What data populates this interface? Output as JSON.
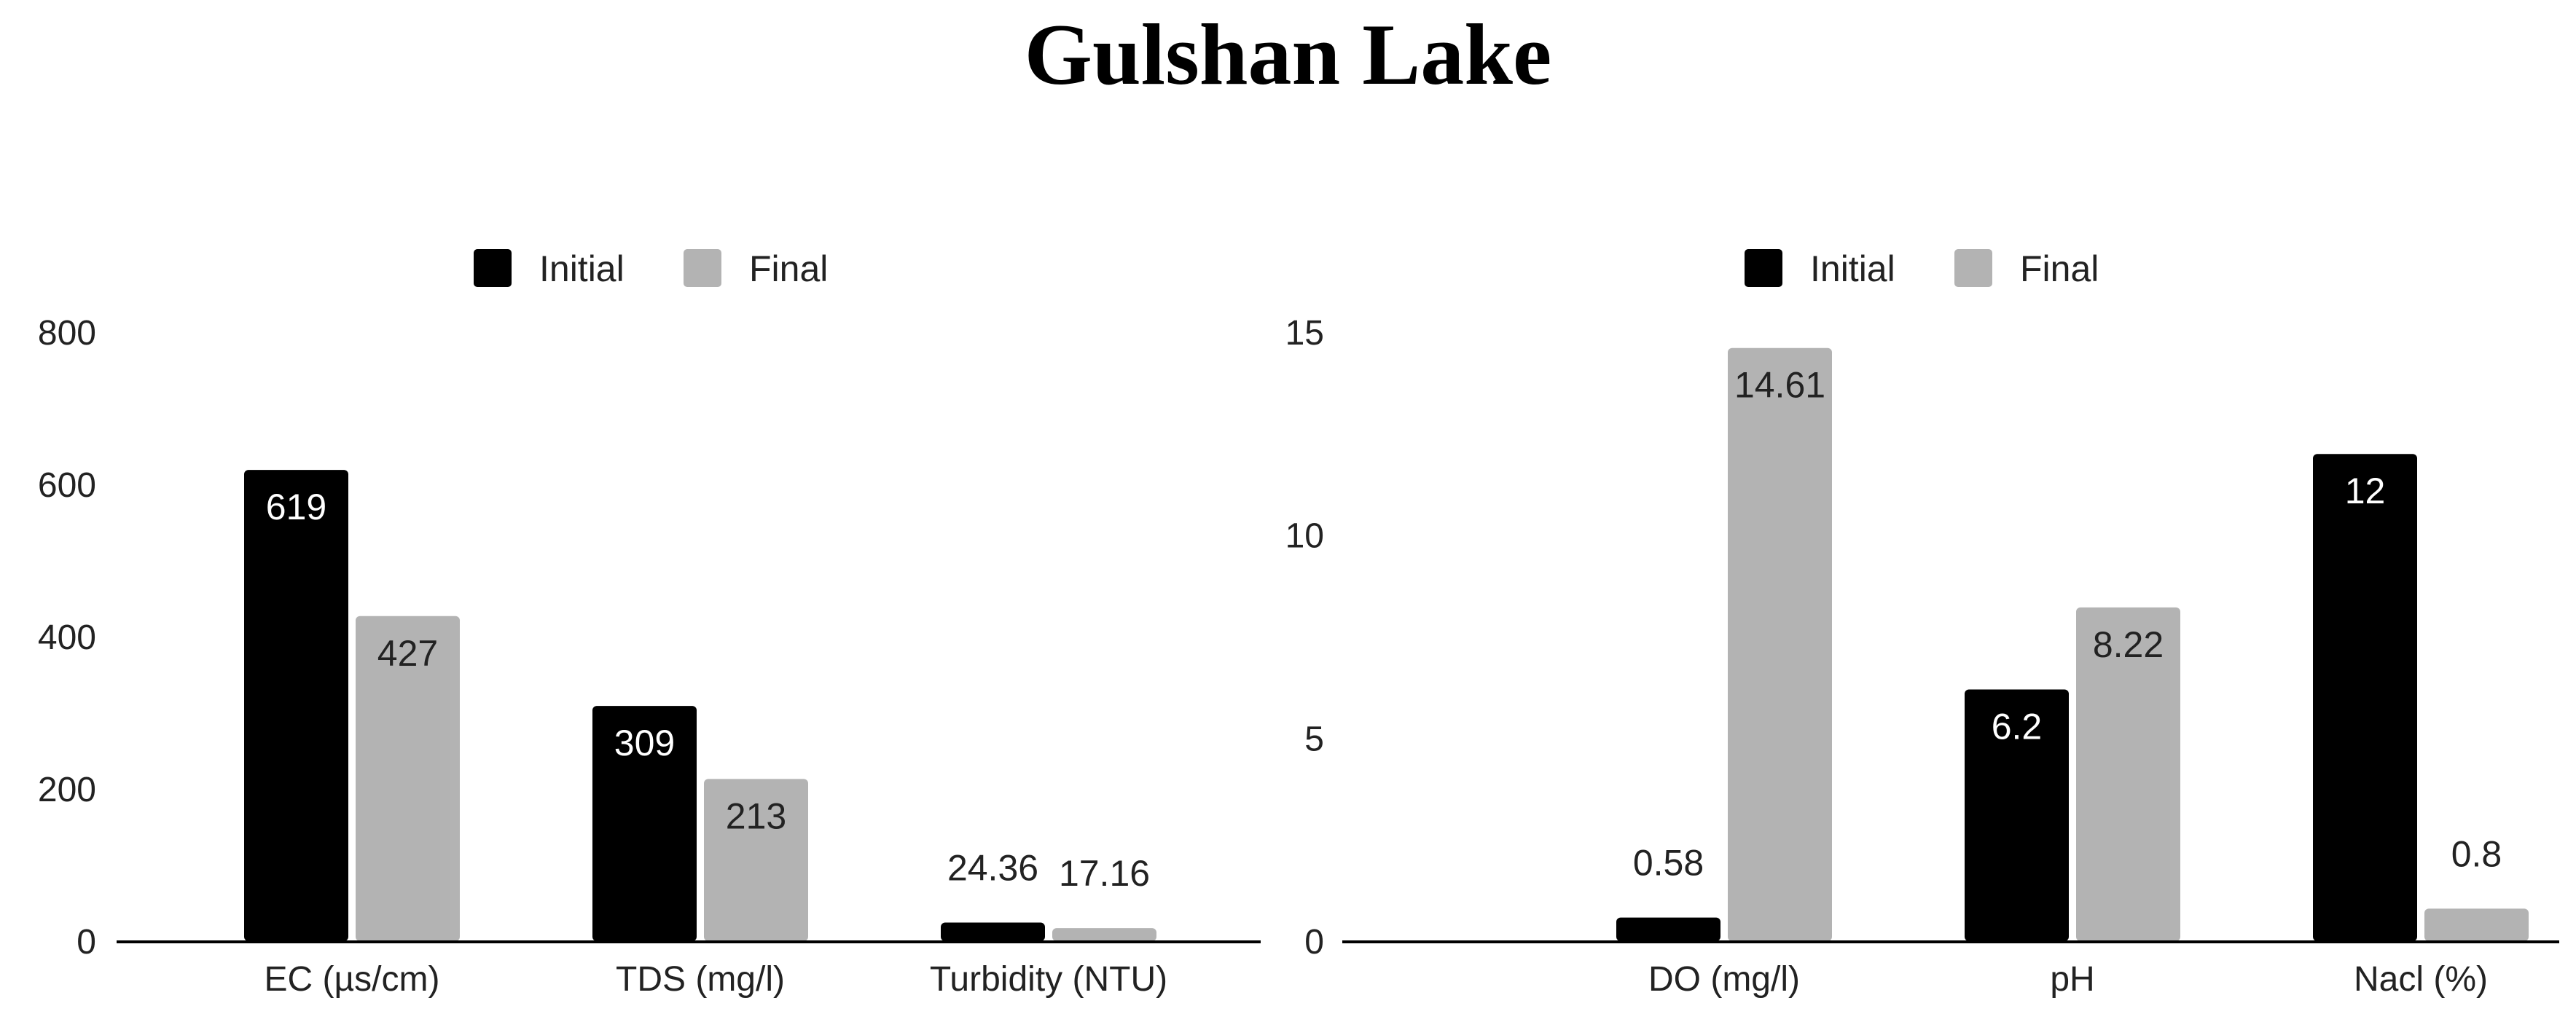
{
  "title": "Gulshan Lake",
  "colors": {
    "initial": "#000000",
    "final": "#b3b3b3"
  },
  "chart_data": [
    {
      "type": "bar",
      "categories": [
        "EC (µs/cm)",
        "TDS (mg/l)",
        "Turbidity (NTU)"
      ],
      "series": [
        {
          "name": "Initial",
          "values": [
            619,
            309,
            24.36
          ],
          "labels": [
            "619",
            "309",
            "24.36"
          ]
        },
        {
          "name": "Final",
          "values": [
            427,
            213,
            17.16
          ],
          "labels": [
            "427",
            "213",
            "17.16"
          ]
        }
      ],
      "yticks": [
        "0",
        "200",
        "400",
        "600",
        "800"
      ],
      "ylim": [
        0,
        800
      ],
      "legend": "top-center",
      "grid": false
    },
    {
      "type": "bar",
      "categories": [
        "DO (mg/l)",
        "pH",
        "Nacl (%)"
      ],
      "series": [
        {
          "name": "Initial",
          "values": [
            0.58,
            6.2,
            12
          ],
          "labels": [
            "0.58",
            "6.2",
            "12"
          ]
        },
        {
          "name": "Final",
          "values": [
            14.61,
            8.22,
            0.8
          ],
          "labels": [
            "14.61",
            "8.22",
            "0.8"
          ]
        }
      ],
      "yticks": [
        "0",
        "5",
        "10",
        "15"
      ],
      "ylim": [
        0,
        15
      ],
      "legend": "top-center",
      "grid": false
    }
  ]
}
